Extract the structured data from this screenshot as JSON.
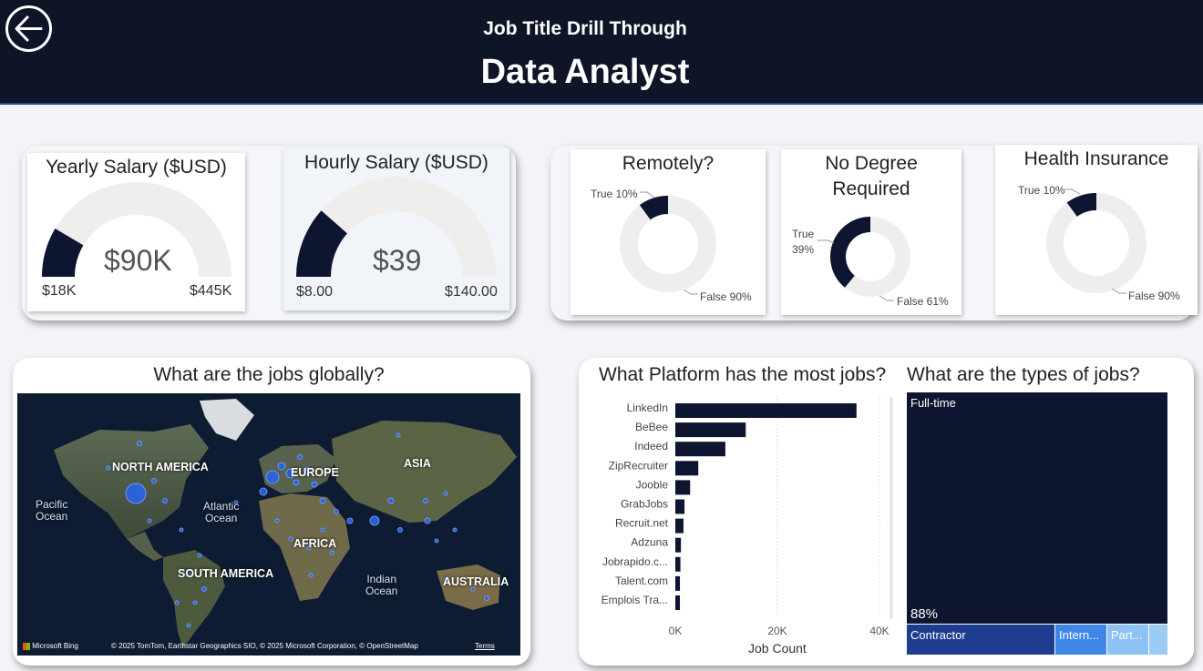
{
  "header": {
    "subtitle": "Job Title Drill Through",
    "title": "Data Analyst"
  },
  "gauges": [
    {
      "title": "Yearly Salary ($USD)",
      "value": "$90K",
      "min": "$18K",
      "max": "$445K",
      "fill_fraction": 0.17
    },
    {
      "title": "Hourly Salary ($USD)",
      "value": "$39",
      "min": "$8.00",
      "max": "$140.00",
      "fill_fraction": 0.23
    }
  ],
  "donuts": [
    {
      "title": "Remotely?",
      "true_label": "True 10%",
      "false_label": "False 90%",
      "true_pct": 10
    },
    {
      "title": "No Degree Required",
      "title_line1": "No Degree",
      "title_line2": "Required",
      "true_label_line1": "True",
      "true_label_line2": "39%",
      "false_label": "False 61%",
      "true_pct": 39
    },
    {
      "title": "Health Insurance",
      "true_label": "True 10%",
      "false_label": "False 90%",
      "true_pct": 10
    }
  ],
  "map": {
    "title": "What are the jobs globally?",
    "labels": {
      "north_america": "NORTH AMERICA",
      "europe": "EUROPE",
      "asia": "ASIA",
      "africa": "AFRICA",
      "south_america": "SOUTH AMERICA",
      "australia": "AUSTRALIA"
    },
    "oceans": {
      "pacific_1": "Pacific",
      "pacific_2": "Ocean",
      "atlantic_1": "Atlantic",
      "atlantic_2": "Ocean",
      "indian_1": "Indian",
      "indian_2": "Ocean"
    },
    "brand": "Microsoft Bing",
    "credit": "© 2025 TomTom, Earthstar Geographics SIO, © 2025 Microsoft Corporation, © OpenStreetMap",
    "terms": "Terms"
  },
  "platform_chart": {
    "title": "What Platform has the most jobs?",
    "xlabel": "Job Count"
  },
  "chart_data": {
    "type": "bar",
    "orientation": "horizontal",
    "title": "What Platform has the most jobs?",
    "xlabel": "Job Count",
    "categories": [
      "LinkedIn",
      "BeBee",
      "Indeed",
      "ZipRecruiter",
      "Jooble",
      "GrabJobs",
      "Recruit.net",
      "Adzuna",
      "Jobrapido.c...",
      "Talent.com",
      "Emplois Tra..."
    ],
    "values": [
      35500,
      13800,
      9800,
      4500,
      2900,
      1800,
      1600,
      1100,
      1000,
      900,
      900
    ],
    "xlim": [
      0,
      40000
    ],
    "xticks": [
      "0K",
      "20K",
      "40K"
    ],
    "color": "#0d1530"
  },
  "treemap": {
    "title": "What are the types of jobs?",
    "cells": [
      {
        "label": "Full-time",
        "pct_label": "88%",
        "color": "#0d1530"
      },
      {
        "label": "Contractor",
        "color": "#1f3d8f"
      },
      {
        "label": "Intern...",
        "color": "#3f86e6"
      },
      {
        "label": "Part...",
        "color": "#8cc2f4"
      },
      {
        "label": "",
        "color": "#9ccbf5"
      }
    ]
  },
  "colors": {
    "header_bg": "#0d1526",
    "dark_navy": "#0d1530",
    "light_gray": "#eeeeee"
  }
}
